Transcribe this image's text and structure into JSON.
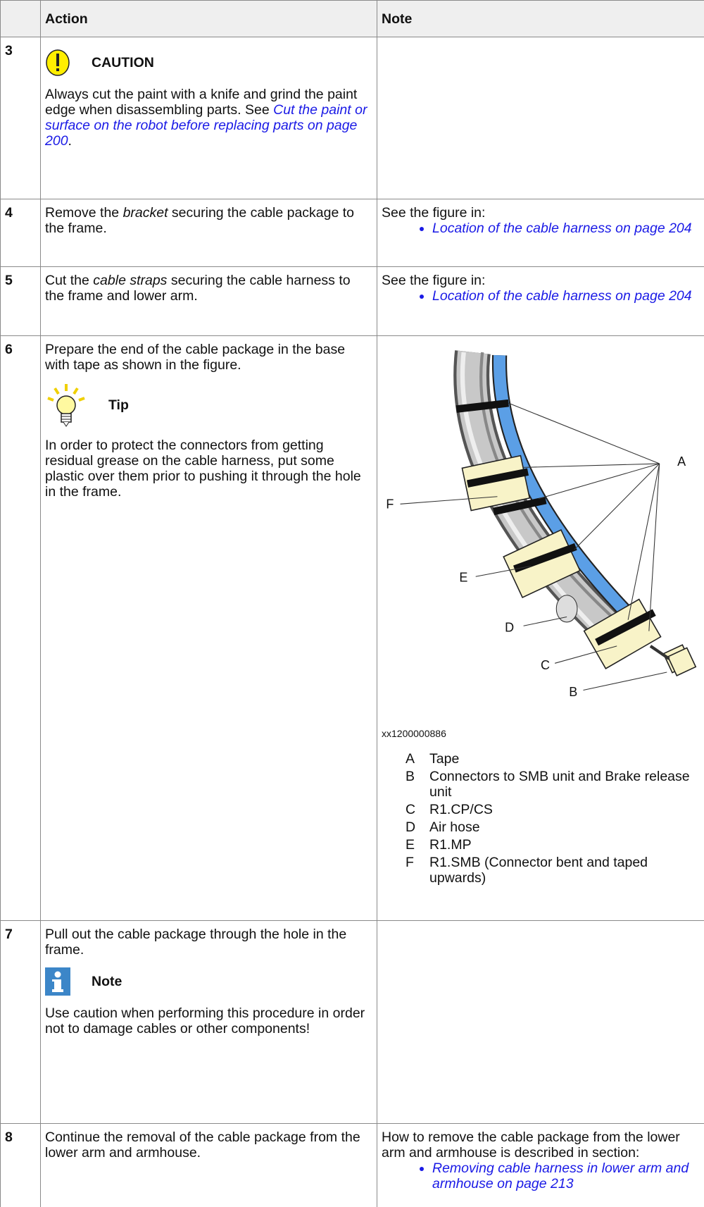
{
  "header": {
    "action": "Action",
    "note": "Note"
  },
  "rows": [
    {
      "step": "3",
      "caution": {
        "title": "CAUTION",
        "text": [
          "Always cut the paint with a knife and grind the paint edge when disassembling parts. See ",
          "Cut the paint or surface on the robot before replacing parts on page 200",
          "."
        ]
      }
    },
    {
      "step": "4",
      "action": [
        "Remove the ",
        "bracket",
        " securing the cable package to the frame."
      ],
      "note": {
        "text": "See the figure in:",
        "links": [
          "Location of the cable harness on page 204"
        ]
      }
    },
    {
      "step": "5",
      "action": [
        "Cut the ",
        "cable straps",
        " securing the cable harness to the frame and lower arm."
      ],
      "note": {
        "text": "See the figure in:",
        "links": [
          "Location of the cable harness on page 204"
        ]
      }
    },
    {
      "step": "6",
      "action": "Prepare the end of the cable package in the base with tape as shown in the figure.",
      "tip": {
        "title": "Tip",
        "text": "In order to protect the connectors from getting residual grease on the cable harness, put some plastic over them prior to pushing it through the hole in the frame."
      },
      "figure": {
        "callouts": [
          "A",
          "B",
          "C",
          "D",
          "E",
          "F"
        ],
        "id": "xx1200000886",
        "legend": [
          {
            "key": "A",
            "text": "Tape"
          },
          {
            "key": "B",
            "text": "Connectors to SMB unit and Brake release unit"
          },
          {
            "key": "C",
            "text": "R1.CP/CS"
          },
          {
            "key": "D",
            "text": "Air hose"
          },
          {
            "key": "E",
            "text": "R1.MP"
          },
          {
            "key": "F",
            "text": "R1.SMB (Connector bent and taped upwards)"
          }
        ]
      }
    },
    {
      "step": "7",
      "action": "Pull out the cable package through the hole in the frame.",
      "note_box": {
        "title": "Note",
        "text": "Use caution when performing this procedure in order not to damage cables or other components!"
      }
    },
    {
      "step": "8",
      "action": "Continue the removal of the cable package from the lower arm and armhouse.",
      "note": {
        "text": "How to remove the cable package from the lower arm and armhouse is described in section:",
        "links": [
          "Removing cable harness in lower arm and armhouse on page 213"
        ]
      }
    }
  ]
}
